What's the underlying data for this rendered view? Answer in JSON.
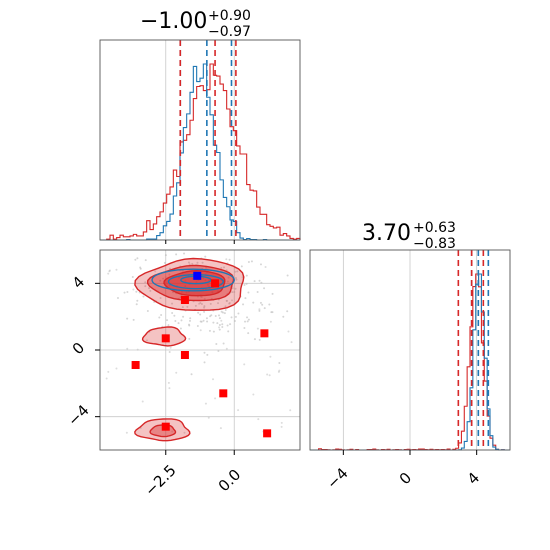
{
  "colors": {
    "blue": "#1f77b4",
    "red": "#d62728",
    "blue_marker": "#0000ff",
    "red_marker": "#ff0000",
    "grid": "#c8c8c8"
  },
  "chart_data": [
    {
      "panel": "top-left",
      "type": "histogram",
      "title": {
        "value": "−1.00",
        "upper": "+0.90",
        "lower": "−0.97"
      },
      "xlim": [
        -4.9,
        2.4
      ],
      "series": [
        {
          "color": "blue",
          "quantiles": [
            -1.97,
            -1.0,
            -0.1
          ]
        },
        {
          "color": "red",
          "quantiles": [
            -1.97,
            -0.7,
            0.06
          ]
        }
      ]
    },
    {
      "panel": "bottom-left",
      "type": "scatter",
      "xlim": [
        -4.9,
        2.4
      ],
      "ylim": [
        -6.0,
        6.0
      ],
      "x_ticks": [
        "−2.5",
        "0.0"
      ],
      "y_ticks": [
        "−4",
        "0",
        "4"
      ],
      "red_points": [
        {
          "x": -2.5,
          "y": 0.7
        },
        {
          "x": -3.6,
          "y": -0.9
        },
        {
          "x": -1.8,
          "y": -0.3
        },
        {
          "x": -1.8,
          "y": 3.0
        },
        {
          "x": -0.7,
          "y": 4.0
        },
        {
          "x": 1.1,
          "y": 1.0
        },
        {
          "x": -0.4,
          "y": -2.6
        },
        {
          "x": -2.5,
          "y": -4.6
        },
        {
          "x": 1.2,
          "y": -5.0
        }
      ],
      "blue_points": [
        {
          "x": -1.35,
          "y": 4.45
        }
      ]
    },
    {
      "panel": "bottom-right",
      "type": "histogram",
      "title": {
        "value": "3.70",
        "upper": "+0.63",
        "lower": "−0.83"
      },
      "xlim": [
        -6.0,
        6.0
      ],
      "x_ticks": [
        "−4",
        "0",
        "4"
      ],
      "series": [
        {
          "color": "blue",
          "quantiles": [
            3.7,
            4.1,
            4.7
          ]
        },
        {
          "color": "red",
          "quantiles": [
            2.9,
            3.7,
            4.4
          ]
        }
      ]
    }
  ]
}
